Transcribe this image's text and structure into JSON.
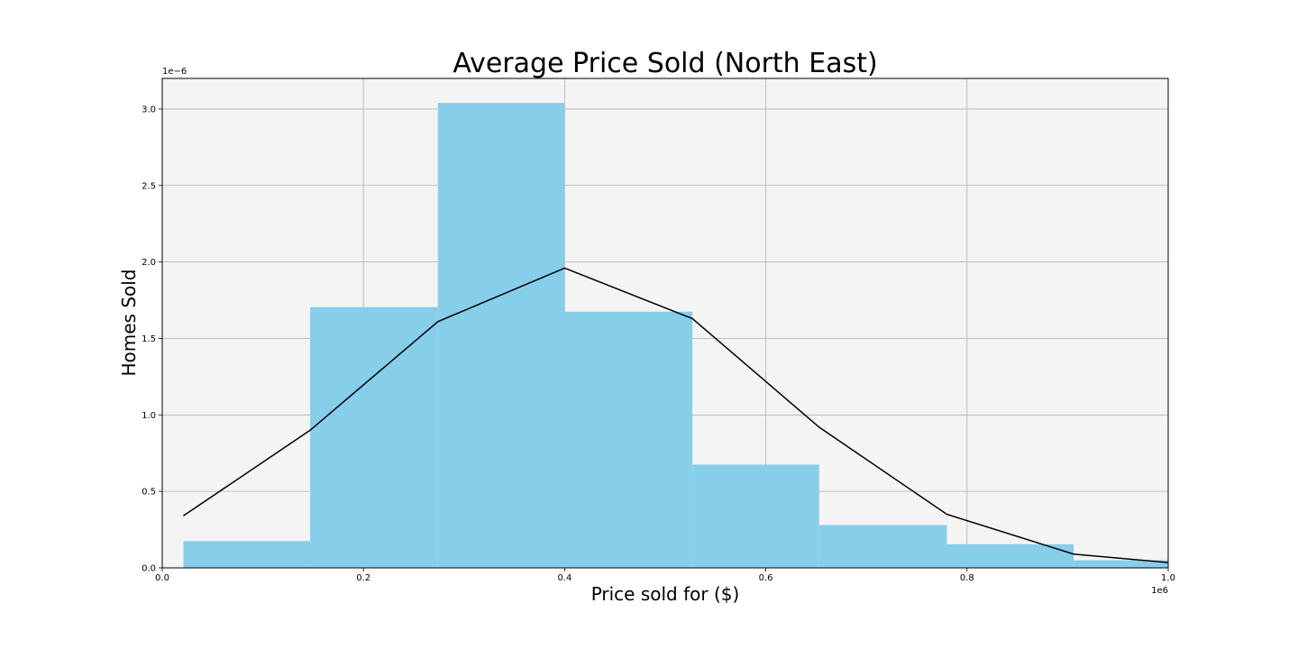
{
  "chart_data": {
    "type": "bar",
    "title": "Average Price Sold (North East)",
    "xlabel": "Price sold for ($)",
    "ylabel": "Homes Sold",
    "x_offset_label": "1e6",
    "y_offset_label": "1e−6",
    "xlim": [
      0.0,
      1.0
    ],
    "ylim": [
      0.0,
      3.2
    ],
    "x_unit_multiplier": 1000000,
    "y_unit_multiplier": 1e-06,
    "grid": true,
    "background_color": "#f4f4f4",
    "bar_color": "#87ceeb",
    "line_color": "#000000",
    "x_ticks": [
      {
        "value": 0.0,
        "label": "0.0"
      },
      {
        "value": 0.2,
        "label": "0.2"
      },
      {
        "value": 0.4,
        "label": "0.4"
      },
      {
        "value": 0.6,
        "label": "0.6"
      },
      {
        "value": 0.8,
        "label": "0.8"
      },
      {
        "value": 1.0,
        "label": "1.0"
      }
    ],
    "y_ticks": [
      {
        "value": 0.0,
        "label": "0.0"
      },
      {
        "value": 0.5,
        "label": "0.5"
      },
      {
        "value": 1.0,
        "label": "1.0"
      },
      {
        "value": 1.5,
        "label": "1.5"
      },
      {
        "value": 2.0,
        "label": "2.0"
      },
      {
        "value": 2.5,
        "label": "2.5"
      },
      {
        "value": 3.0,
        "label": "3.0"
      }
    ],
    "histogram_bins": [
      {
        "x0": 0.021,
        "x1": 0.147,
        "value": 0.175
      },
      {
        "x0": 0.147,
        "x1": 0.274,
        "value": 1.705
      },
      {
        "x0": 0.274,
        "x1": 0.4,
        "value": 3.04
      },
      {
        "x0": 0.4,
        "x1": 0.527,
        "value": 1.675
      },
      {
        "x0": 0.527,
        "x1": 0.653,
        "value": 0.675
      },
      {
        "x0": 0.653,
        "x1": 0.78,
        "value": 0.28
      },
      {
        "x0": 0.78,
        "x1": 0.906,
        "value": 0.155
      },
      {
        "x0": 0.906,
        "x1": 1.032,
        "value": 0.05
      }
    ],
    "line_series": {
      "x": [
        0.021,
        0.147,
        0.274,
        0.4,
        0.527,
        0.653,
        0.78,
        0.906,
        1.0
      ],
      "y": [
        0.34,
        0.9,
        1.61,
        1.96,
        1.63,
        0.92,
        0.35,
        0.09,
        0.035
      ]
    }
  }
}
